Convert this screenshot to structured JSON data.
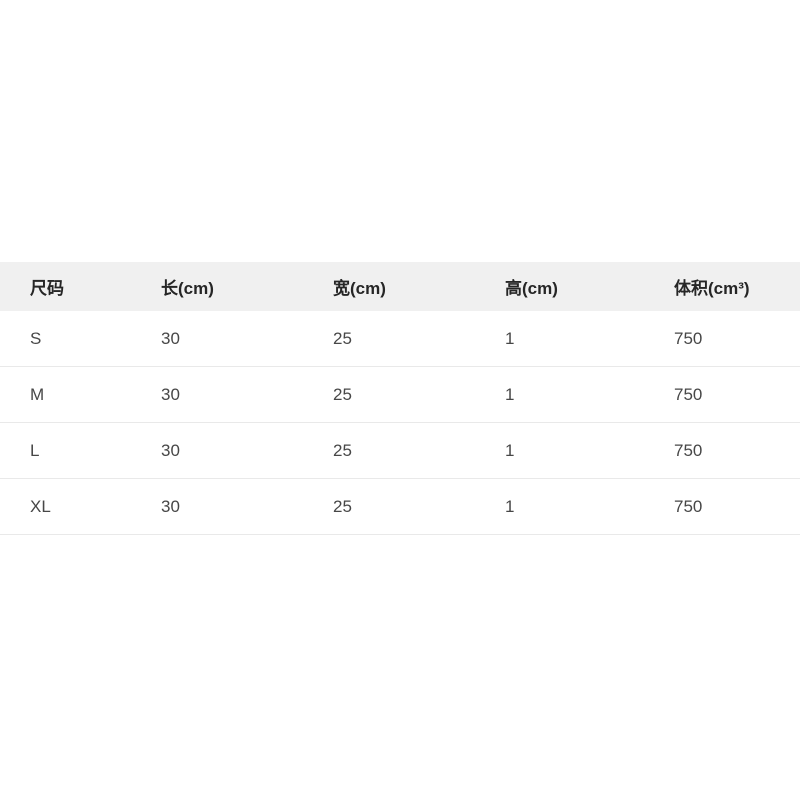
{
  "colors": {
    "header_bg": "#f0f0f0",
    "row_border": "#e9e9e9",
    "header_text": "#262626",
    "body_text": "#474747",
    "page_bg": "#ffffff"
  },
  "size_chart": {
    "headers": [
      "尺码",
      "长(cm)",
      "宽(cm)",
      "高(cm)",
      "体积(cm³)"
    ],
    "rows": [
      [
        "S",
        "30",
        "25",
        "1",
        "750"
      ],
      [
        "M",
        "30",
        "25",
        "1",
        "750"
      ],
      [
        "L",
        "30",
        "25",
        "1",
        "750"
      ],
      [
        "XL",
        "30",
        "25",
        "1",
        "750"
      ]
    ]
  }
}
